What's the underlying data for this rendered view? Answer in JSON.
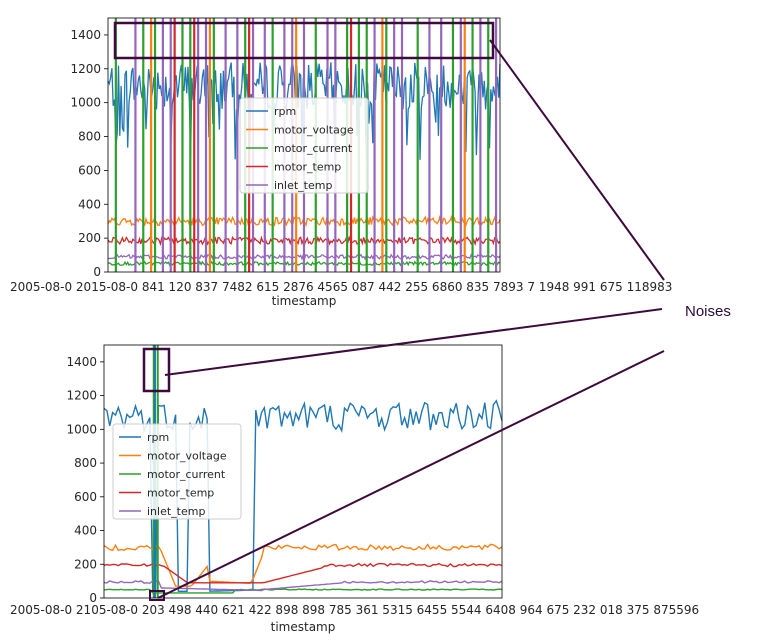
{
  "annotation": {
    "label": "Noises",
    "color": "#3d0a3d"
  },
  "chart_data": [
    {
      "type": "line",
      "title": "",
      "xlabel": "timestamp",
      "ylabel": "",
      "ylim": [
        0,
        1500
      ],
      "yticks": [
        0,
        200,
        400,
        600,
        800,
        1000,
        1200,
        1400
      ],
      "x_tick_text": "2005-08-0 2015-08-0 841 120 837 7482 615 2876 4565 087 442 255 6860 835 7893 7 1948 991 675 118983",
      "legend_position": "center",
      "grid": false,
      "description_of_series": "Dense time-series; noisy spikes to the top of the axis in motor_current and inlet_temp",
      "series": [
        {
          "name": "rpm",
          "color": "#1f77b4",
          "base": 1100,
          "spread": 140
        },
        {
          "name": "motor_voltage",
          "color": "#ff7f0e",
          "base": 300,
          "spread": 25
        },
        {
          "name": "motor_current",
          "color": "#2ca02c",
          "base": 50,
          "spread": 10
        },
        {
          "name": "motor_temp",
          "color": "#d62728",
          "base": 185,
          "spread": 20
        },
        {
          "name": "inlet_temp",
          "color": "#9467bd",
          "base": 90,
          "spread": 12
        }
      ]
    },
    {
      "type": "line",
      "title": "",
      "xlabel": "timestamp",
      "ylabel": "",
      "ylim": [
        0,
        1500
      ],
      "yticks": [
        0,
        200,
        400,
        600,
        800,
        1000,
        1200,
        1400
      ],
      "x_tick_text": "2005-08-0 2105-08-0 203 498 440 621 422 898 898 785 361 5315 6455 5544 6408 964 675 232 018 375 875596",
      "legend_position": "center-left",
      "grid": false,
      "series": [
        {
          "name": "rpm",
          "color": "#1f77b4"
        },
        {
          "name": "motor_voltage",
          "color": "#ff7f0e"
        },
        {
          "name": "motor_current",
          "color": "#2ca02c"
        },
        {
          "name": "motor_temp",
          "color": "#d62728"
        },
        {
          "name": "inlet_temp",
          "color": "#9467bd"
        }
      ]
    }
  ]
}
